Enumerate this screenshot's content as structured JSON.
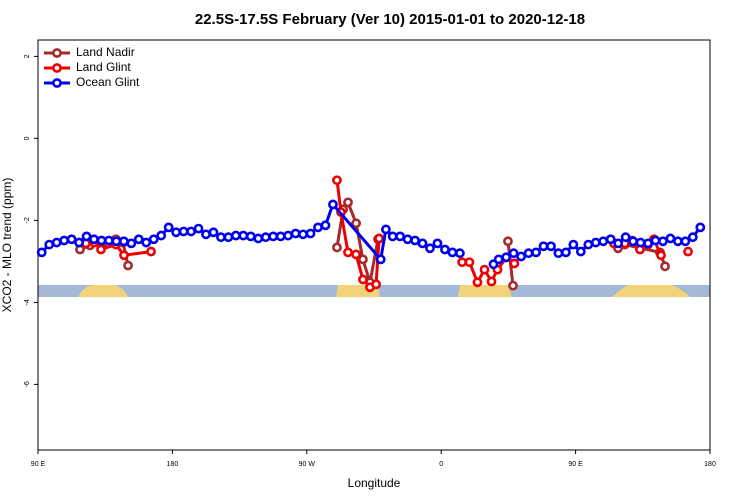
{
  "chart_data": {
    "type": "line",
    "title": "22.5S-17.5S February (Ver 10)   2015-01-01 to 2020-12-18",
    "xlabel": "Longitude",
    "ylabel": "XCO2 - MLO trend (ppm)",
    "xlim": [
      90,
      540
    ],
    "ylim": [
      -7.6,
      2.4
    ],
    "xticks": [
      {
        "value": 90,
        "label": "90 E"
      },
      {
        "value": 180,
        "label": "180"
      },
      {
        "value": 270,
        "label": "90 W"
      },
      {
        "value": 360,
        "label": "0"
      },
      {
        "value": 450,
        "label": "90 E"
      },
      {
        "value": 540,
        "label": "180"
      }
    ],
    "yticks": [
      2,
      0,
      -2,
      -4,
      -6
    ],
    "legend": "upper left",
    "series": [
      {
        "name": "Land Nadir",
        "color": "#a52a2a",
        "x": [
          118.1,
          124.8,
          132.2,
          136.9,
          142.2,
          146.9,
          150.3,
          null,
          290.2,
          294.3,
          297.6,
          303,
          307.6,
          312.3,
          317.7,
          null,
          404.7,
          408.1,
          null,
          478.4,
          483,
          506.5,
          509.9
        ],
        "values": [
          -2.71,
          -2.61,
          -2.54,
          -2.56,
          -2.46,
          -2.54,
          -3.1,
          null,
          -2.66,
          -1.73,
          -1.56,
          -2.07,
          -2.95,
          -3.51,
          -2.46,
          null,
          -2.51,
          -3.59,
          null,
          -2.68,
          -2.59,
          -2.78,
          -3.12
        ]
      },
      {
        "name": "Land Glint",
        "color": "#ee0000",
        "x": [
          122.1,
          127.5,
          132.2,
          142.2,
          147.6,
          165.7,
          null,
          290.2,
          292.9,
          297.6,
          303,
          307.6,
          312.3,
          316.4,
          318.4,
          null,
          374,
          378.9,
          384.3,
          389,
          393.7,
          397.7,
          403.7,
          409,
          null,
          475.7,
          483,
          487.8,
          493.1,
          498.5,
          502.5,
          507.2,
          null,
          525.3
        ],
        "values": [
          -2.56,
          -2.54,
          -2.71,
          -2.59,
          -2.85,
          -2.76,
          null,
          -1.02,
          -1.8,
          -2.78,
          -2.83,
          -3.44,
          -3.63,
          -3.56,
          -2.44,
          null,
          -3.02,
          -3.02,
          -3.51,
          -3.2,
          -3.49,
          -3.2,
          -2.9,
          -3.05,
          null,
          -2.56,
          -2.56,
          -2.49,
          -2.71,
          -2.59,
          -2.46,
          -2.85,
          null,
          -2.76
        ]
      },
      {
        "name": "Ocean Glint",
        "color": "#0000ee",
        "x": [
          92.5,
          97.5,
          102.5,
          107.5,
          112.5,
          117.5,
          122.5,
          127.5,
          132.5,
          137.5,
          142.5,
          147.5,
          152.5,
          157.5,
          162.5,
          167.5,
          172.5,
          177.5,
          182.5,
          187.5,
          192.5,
          197.5,
          202.5,
          207.5,
          212.5,
          217.5,
          222.5,
          227.5,
          232.5,
          237.5,
          242.5,
          247.5,
          252.5,
          257.5,
          262.5,
          267.5,
          272.5,
          277.5,
          282.5,
          287.5,
          319.5,
          323,
          327.5,
          332.5,
          337.5,
          342.5,
          347.5,
          352.5,
          357.5,
          362.5,
          367.5,
          372.5,
          null,
          395,
          398.5,
          403.5,
          408.5,
          413.5,
          418.5,
          423.5,
          428.5,
          433.5,
          438.5,
          443.5,
          448.5,
          453.5,
          458.5,
          463.5,
          468.5,
          473.5,
          478.5,
          483.5,
          488.5,
          493.5,
          498.5,
          503.5,
          508.5,
          513.5,
          518.5,
          523.5,
          528.5,
          533.5
        ],
        "values": [
          -2.78,
          -2.59,
          -2.54,
          -2.49,
          -2.46,
          -2.54,
          -2.39,
          -2.46,
          -2.49,
          -2.49,
          -2.51,
          -2.51,
          -2.56,
          -2.46,
          -2.54,
          -2.46,
          -2.37,
          -2.17,
          -2.29,
          -2.27,
          -2.27,
          -2.2,
          -2.34,
          -2.29,
          -2.41,
          -2.41,
          -2.37,
          -2.37,
          -2.39,
          -2.44,
          -2.41,
          -2.39,
          -2.39,
          -2.37,
          -2.32,
          -2.34,
          -2.32,
          -2.17,
          -2.12,
          -1.61,
          -2.95,
          -2.22,
          -2.39,
          -2.39,
          -2.46,
          -2.49,
          -2.56,
          -2.68,
          -2.56,
          -2.71,
          -2.78,
          -2.8,
          null,
          -3.07,
          -2.95,
          -2.9,
          -2.8,
          -2.88,
          -2.8,
          -2.78,
          -2.63,
          -2.63,
          -2.8,
          -2.78,
          -2.59,
          -2.76,
          -2.59,
          -2.54,
          -2.51,
          -2.46,
          -2.56,
          -2.41,
          -2.51,
          -2.54,
          -2.56,
          -2.49,
          -2.51,
          -2.44,
          -2.51,
          -2.51,
          -2.41,
          -2.17
        ]
      }
    ]
  }
}
